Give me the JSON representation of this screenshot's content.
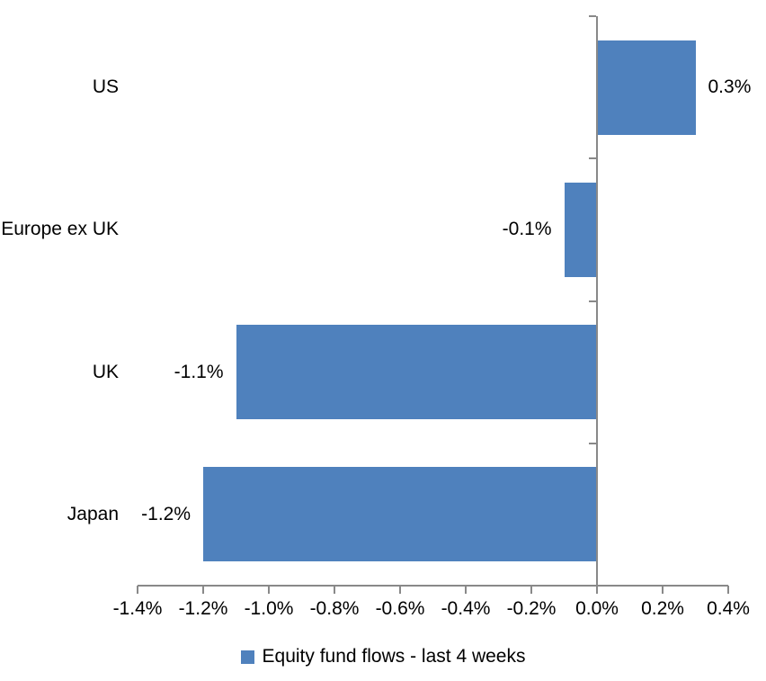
{
  "chart_data": {
    "type": "bar",
    "orientation": "horizontal",
    "categories": [
      "US",
      "Europe ex UK",
      "UK",
      "Japan"
    ],
    "values": [
      0.3,
      -0.1,
      -1.1,
      -1.2
    ],
    "value_labels": [
      "0.3%",
      "-0.1%",
      "-1.1%",
      "-1.2%"
    ],
    "x_ticks": [
      {
        "value": -1.4,
        "label": "-1.4%"
      },
      {
        "value": -1.2,
        "label": "-1.2%"
      },
      {
        "value": -1.0,
        "label": "-1.0%"
      },
      {
        "value": -0.8,
        "label": "-0.8%"
      },
      {
        "value": -0.6,
        "label": "-0.6%"
      },
      {
        "value": -0.4,
        "label": "-0.4%"
      },
      {
        "value": -0.2,
        "label": "-0.2%"
      },
      {
        "value": 0.0,
        "label": "0.0%"
      },
      {
        "value": 0.2,
        "label": "0.2%"
      },
      {
        "value": 0.4,
        "label": "0.4%"
      }
    ],
    "xlim": [
      -1.4,
      0.4
    ],
    "grid": false,
    "bar_color": "#4F81BD",
    "axis_color": "#898989",
    "text_color": "#000000",
    "legend": {
      "position": "bottom-center",
      "entries": [
        {
          "label": "Equity fund flows - last 4 weeks",
          "swatch_color": "#4F81BD"
        }
      ]
    }
  }
}
